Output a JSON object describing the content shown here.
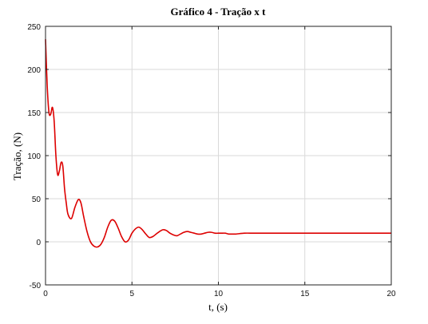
{
  "chart_data": {
    "type": "line",
    "title": "Gráfico 4 - Tração x t",
    "xlabel": "t, (s)",
    "ylabel": "Tração, (N)",
    "xlim": [
      0,
      20
    ],
    "ylim": [
      -50,
      250
    ],
    "xticks": [
      0,
      5,
      10,
      15,
      20
    ],
    "yticks": [
      -50,
      0,
      50,
      100,
      150,
      200,
      250
    ],
    "grid": true,
    "series": [
      {
        "color": "#dd0000",
        "x": [
          0,
          0.1,
          0.2,
          0.3,
          0.4,
          0.5,
          0.6,
          0.7,
          0.8,
          0.9,
          1.0,
          1.1,
          1.2,
          1.3,
          1.5,
          1.7,
          1.9,
          2.05,
          2.2,
          2.4,
          2.6,
          2.8,
          3.0,
          3.2,
          3.4,
          3.6,
          3.8,
          4.0,
          4.2,
          4.4,
          4.6,
          4.8,
          5.0,
          5.2,
          5.4,
          5.6,
          5.8,
          6.0,
          6.2,
          6.4,
          6.6,
          6.8,
          7.0,
          7.2,
          7.4,
          7.6,
          7.8,
          8.0,
          8.2,
          8.4,
          8.6,
          8.8,
          9.0,
          9.2,
          9.4,
          9.6,
          9.8,
          10.0,
          10.2,
          10.4,
          10.6,
          10.8,
          11.0,
          11.5,
          12.0,
          12.5,
          13.0,
          14.0,
          15.0,
          16.0,
          17.0,
          18.0,
          19.0,
          20.0
        ],
        "y": [
          235,
          180,
          150,
          148,
          156,
          140,
          100,
          78,
          82,
          92,
          88,
          62,
          45,
          32,
          27,
          40,
          49,
          45,
          30,
          12,
          0,
          -5,
          -6,
          -3,
          5,
          17,
          25,
          24,
          16,
          6,
          0,
          2,
          10,
          15,
          17,
          14,
          9,
          5,
          6,
          9,
          12,
          14,
          13,
          10,
          8,
          7,
          9,
          11,
          12,
          11,
          10,
          9,
          9,
          10,
          11,
          11,
          10,
          10,
          10,
          10,
          9,
          9,
          9,
          10,
          10,
          10,
          10,
          10,
          10,
          10,
          10,
          10,
          10,
          10
        ]
      }
    ]
  }
}
